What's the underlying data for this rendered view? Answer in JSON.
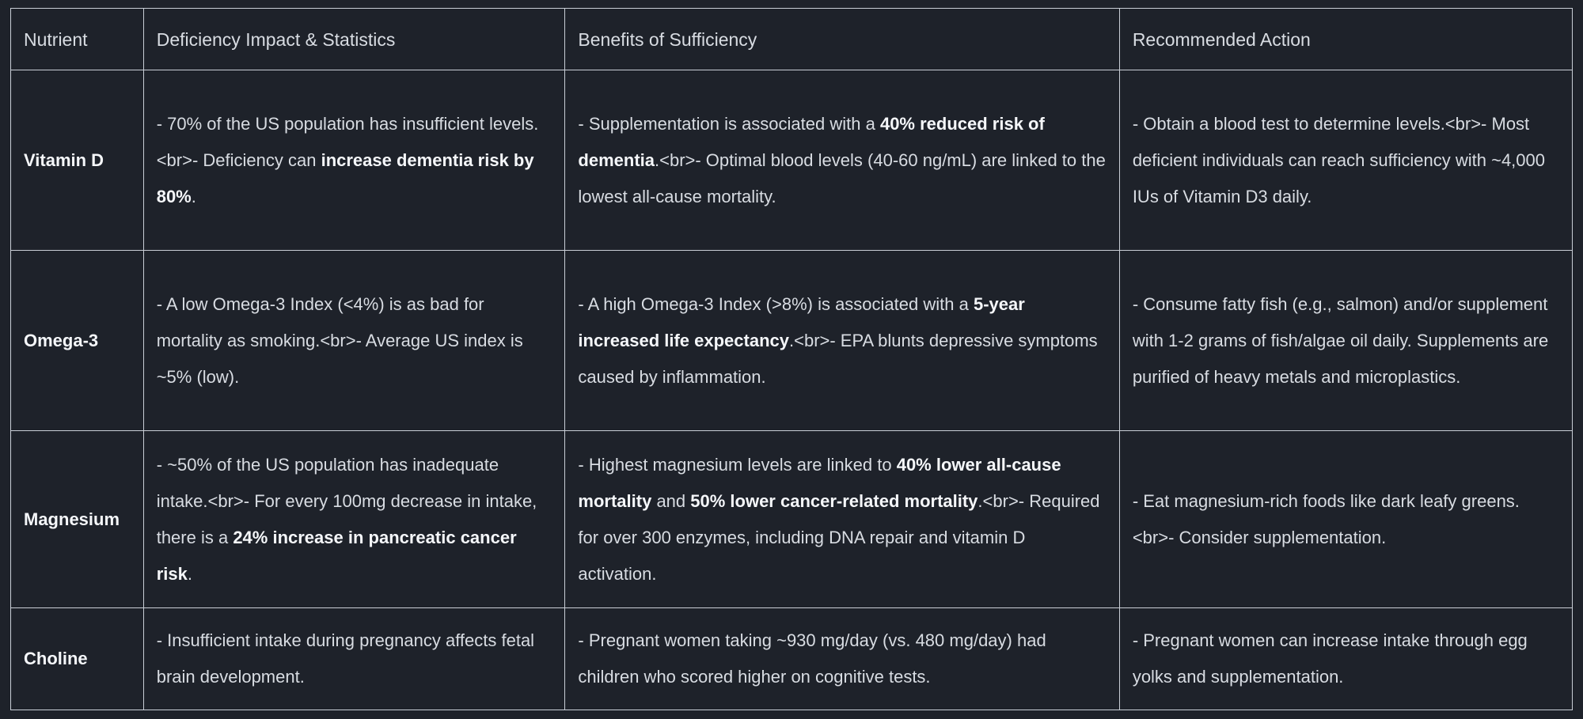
{
  "theme": {
    "page_bg": "#1e222a",
    "border_color": "#c9ced6",
    "text_color": "#d8dce2",
    "bold_text_color": "#f5f7fa"
  },
  "table": {
    "headers": [
      "Nutrient",
      "Deficiency Impact & Statistics",
      "Benefits of Sufficiency",
      "Recommended Action"
    ],
    "rows": [
      {
        "nutrient": "Vitamin D",
        "deficiency": [
          {
            "text": "- 70% of the US population has insufficient levels.<br>- Deficiency can ",
            "bold": false
          },
          {
            "text": "increase dementia risk by 80%",
            "bold": true
          },
          {
            "text": ".",
            "bold": false
          }
        ],
        "benefits": [
          {
            "text": "- Supplementation is associated with a ",
            "bold": false
          },
          {
            "text": "40% reduced risk of dementia",
            "bold": true
          },
          {
            "text": ".<br>- Optimal blood levels (40-60 ng/mL) are linked to the lowest all-cause mortality.",
            "bold": false
          }
        ],
        "action": [
          {
            "text": "- Obtain a blood test to determine levels.<br>- Most deficient individuals can reach sufficiency with ~4,000 IUs of Vitamin D3 daily.",
            "bold": false
          }
        ]
      },
      {
        "nutrient": "Omega-3",
        "deficiency": [
          {
            "text": "- A low Omega-3 Index (<4%) is as bad for mortality as smoking.<br>- Average US index is ~5% (low).",
            "bold": false
          }
        ],
        "benefits": [
          {
            "text": "- A high Omega-3 Index (>8%) is associated with a ",
            "bold": false
          },
          {
            "text": "5-year increased life expectancy",
            "bold": true
          },
          {
            "text": ".<br>- EPA blunts depressive symptoms caused by inflammation.",
            "bold": false
          }
        ],
        "action": [
          {
            "text": "- Consume fatty fish (e.g., salmon) and/or supplement with 1-2 grams of fish/algae oil daily. Supplements are purified of heavy metals and microplastics.",
            "bold": false
          }
        ]
      },
      {
        "nutrient": "Magnesium",
        "deficiency": [
          {
            "text": "- ~50% of the US population has inadequate intake.<br>- For every 100mg decrease in intake, there is a ",
            "bold": false
          },
          {
            "text": "24% increase in pancreatic cancer risk",
            "bold": true
          },
          {
            "text": ".",
            "bold": false
          }
        ],
        "benefits": [
          {
            "text": "- Highest magnesium levels are linked to ",
            "bold": false
          },
          {
            "text": "40% lower all-cause mortality",
            "bold": true
          },
          {
            "text": " and ",
            "bold": false
          },
          {
            "text": "50% lower cancer-related mortality",
            "bold": true
          },
          {
            "text": ".<br>- Required for over 300 enzymes, including DNA repair and vitamin D activation.",
            "bold": false
          }
        ],
        "action": [
          {
            "text": "- Eat magnesium-rich foods like dark leafy greens.<br>- Consider supplementation.",
            "bold": false
          }
        ]
      },
      {
        "nutrient": "Choline",
        "deficiency": [
          {
            "text": "- Insufficient intake during pregnancy affects fetal brain development.",
            "bold": false
          }
        ],
        "benefits": [
          {
            "text": "- Pregnant women taking ~930 mg/day (vs. 480 mg/day) had children who scored higher on cognitive tests.",
            "bold": false
          }
        ],
        "action": [
          {
            "text": "- Pregnant women can increase intake through egg yolks and supplementation.",
            "bold": false
          }
        ]
      }
    ]
  }
}
